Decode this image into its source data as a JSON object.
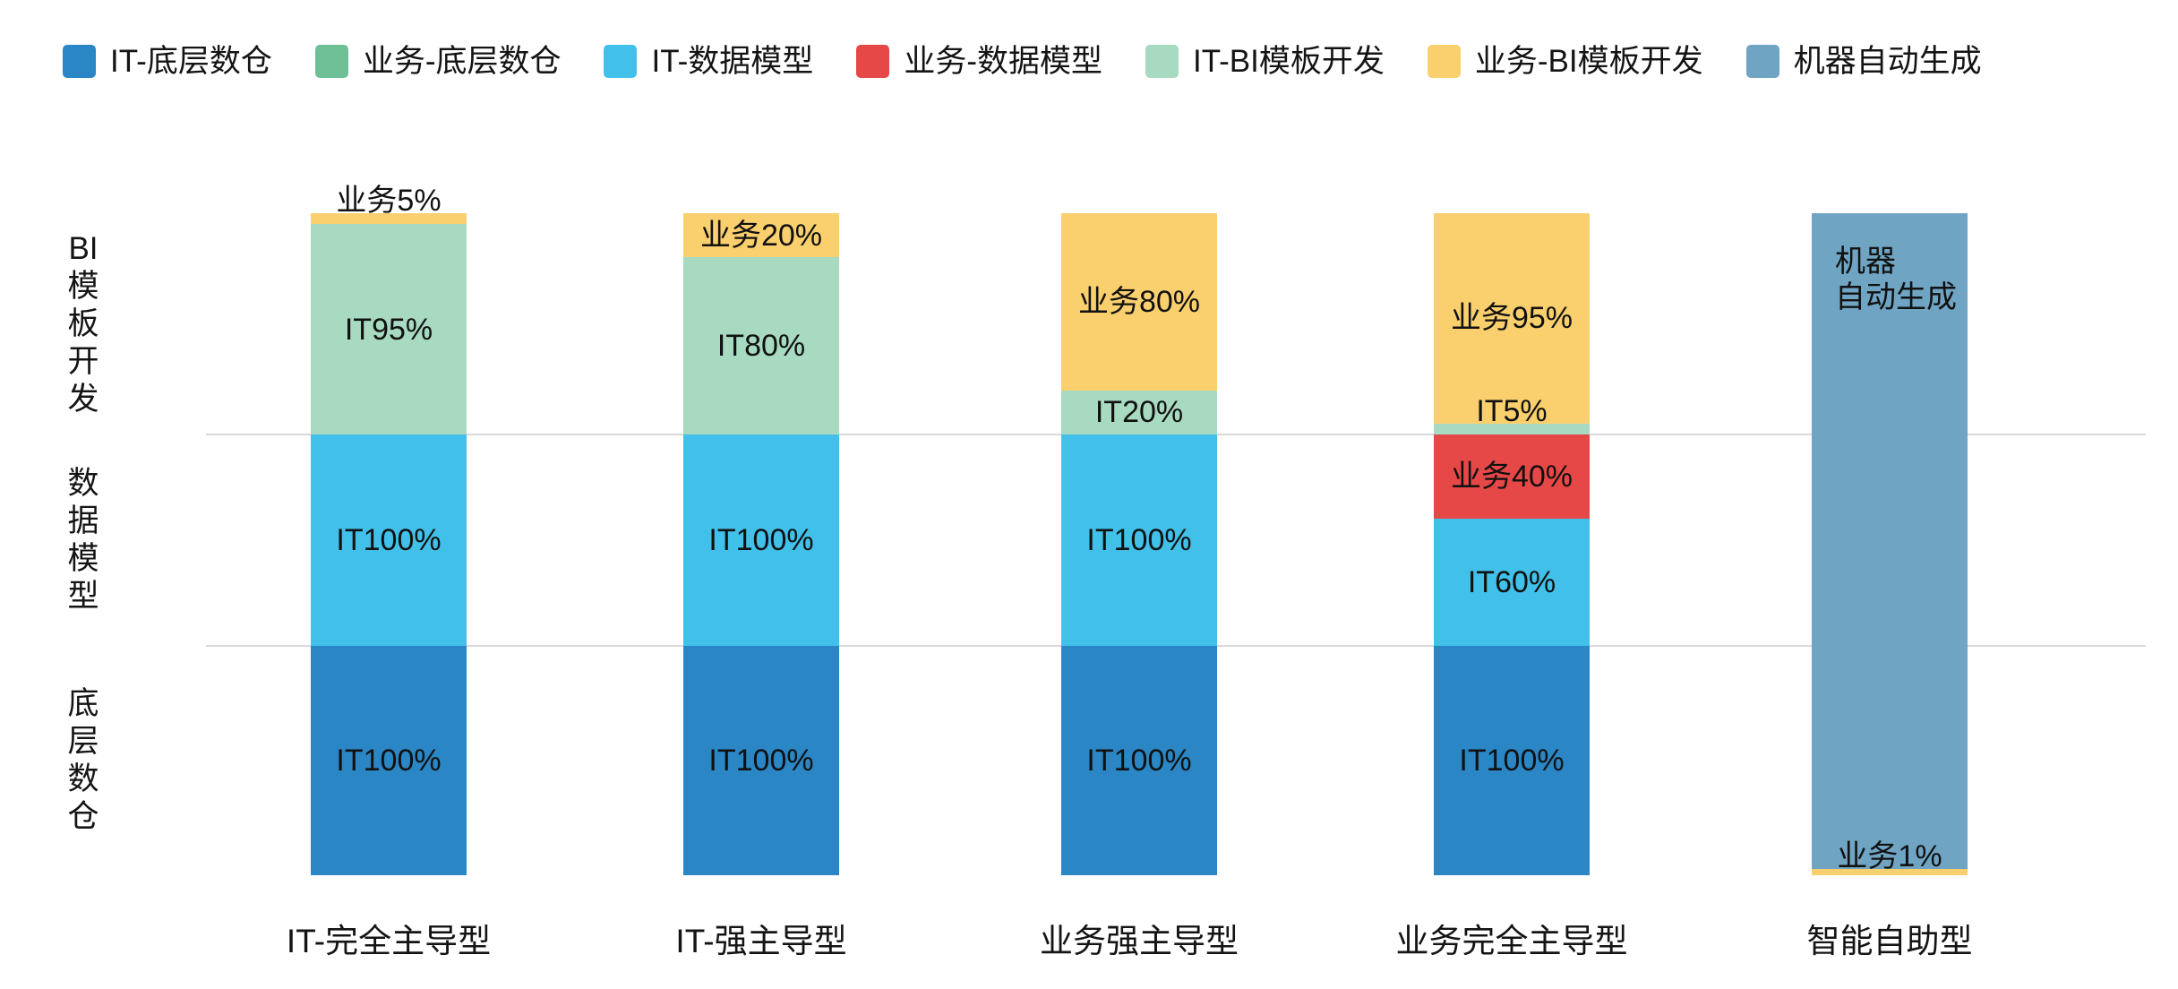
{
  "legend": {
    "items": [
      {
        "label": "IT-底层数仓",
        "color": "#2a86c5"
      },
      {
        "label": "业务-底层数仓",
        "color": "#6fc096"
      },
      {
        "label": "IT-数据模型",
        "color": "#41c0e9"
      },
      {
        "label": "业务-数据模型",
        "color": "#e64747"
      },
      {
        "label": "IT-BI模板开发",
        "color": "#a7dac1"
      },
      {
        "label": "业务-BI模板开发",
        "color": "#fad06e"
      },
      {
        "label": "机器自动生成",
        "color": "#6fa5c3"
      }
    ]
  },
  "axis": {
    "row_labels": [
      {
        "text": "BI模板开发",
        "display": "BI\n模\n板\n开\n发"
      },
      {
        "text": "数据模型",
        "display": "数\n据\n模\n型"
      },
      {
        "text": "底层数仓",
        "display": "底\n层\n数\n仓"
      }
    ]
  },
  "chart_data": {
    "type": "bar",
    "stacked": true,
    "orientation": "vertical",
    "unit": "%",
    "grid": "horizontal-band-dividers",
    "legend_position": "top",
    "bands": [
      "BI模板开发",
      "数据模型",
      "底层数仓"
    ],
    "categories": [
      "IT-完全主导型",
      "IT-强主导型",
      "业务强主导型",
      "业务完全主导型",
      "智能自助型"
    ],
    "columns": [
      {
        "category": "IT-完全主导型",
        "segments": [
          {
            "series": "业务-BI模板开发",
            "band_index": 0,
            "value_pct": 5,
            "label": "业务5%",
            "color": "#fad06e",
            "label_pos": "above"
          },
          {
            "series": "IT-BI模板开发",
            "band_index": 0,
            "value_pct": 95,
            "label": "IT95%",
            "color": "#a7dac1",
            "label_pos": "center"
          },
          {
            "series": "IT-数据模型",
            "band_index": 1,
            "value_pct": 100,
            "label": "IT100%",
            "color": "#41c0e9",
            "label_pos": "center"
          },
          {
            "series": "IT-底层数仓",
            "band_index": 2,
            "value_pct": 100,
            "label": "IT100%",
            "color": "#2a86c5",
            "label_pos": "center"
          }
        ]
      },
      {
        "category": "IT-强主导型",
        "segments": [
          {
            "series": "业务-BI模板开发",
            "band_index": 0,
            "value_pct": 20,
            "label": "业务20%",
            "color": "#fad06e",
            "label_pos": "center"
          },
          {
            "series": "IT-BI模板开发",
            "band_index": 0,
            "value_pct": 80,
            "label": "IT80%",
            "color": "#a7dac1",
            "label_pos": "center"
          },
          {
            "series": "IT-数据模型",
            "band_index": 1,
            "value_pct": 100,
            "label": "IT100%",
            "color": "#41c0e9",
            "label_pos": "center"
          },
          {
            "series": "IT-底层数仓",
            "band_index": 2,
            "value_pct": 100,
            "label": "IT100%",
            "color": "#2a86c5",
            "label_pos": "center"
          }
        ]
      },
      {
        "category": "业务强主导型",
        "segments": [
          {
            "series": "业务-BI模板开发",
            "band_index": 0,
            "value_pct": 80,
            "label": "业务80%",
            "color": "#fad06e",
            "label_pos": "center"
          },
          {
            "series": "IT-BI模板开发",
            "band_index": 0,
            "value_pct": 20,
            "label": "IT20%",
            "color": "#a7dac1",
            "label_pos": "center"
          },
          {
            "series": "IT-数据模型",
            "band_index": 1,
            "value_pct": 100,
            "label": "IT100%",
            "color": "#41c0e9",
            "label_pos": "center"
          },
          {
            "series": "IT-底层数仓",
            "band_index": 2,
            "value_pct": 100,
            "label": "IT100%",
            "color": "#2a86c5",
            "label_pos": "center"
          }
        ]
      },
      {
        "category": "业务完全主导型",
        "segments": [
          {
            "series": "业务-BI模板开发",
            "band_index": 0,
            "value_pct": 95,
            "label": "业务95%",
            "color": "#fad06e",
            "label_pos": "center"
          },
          {
            "series": "IT-BI模板开发",
            "band_index": 0,
            "value_pct": 5,
            "label": "IT5%",
            "color": "#a7dac1",
            "label_pos": "above"
          },
          {
            "series": "业务-数据模型",
            "band_index": 1,
            "value_pct": 40,
            "label": "业务40%",
            "color": "#e64747",
            "label_pos": "center"
          },
          {
            "series": "IT-数据模型",
            "band_index": 1,
            "value_pct": 60,
            "label": "IT60%",
            "color": "#41c0e9",
            "label_pos": "center"
          },
          {
            "series": "IT-底层数仓",
            "band_index": 2,
            "value_pct": 100,
            "label": "IT100%",
            "color": "#2a86c5",
            "label_pos": "center"
          }
        ]
      },
      {
        "category": "智能自助型",
        "segments": [
          {
            "series": "机器自动生成",
            "span": "total",
            "value_pct": 99,
            "label": "机器\n自动生成",
            "color": "#6fa5c3",
            "label_pos": "top-left"
          },
          {
            "series": "业务-BI模板开发",
            "span": "total",
            "value_pct": 1,
            "label": "业务1%",
            "color": "#fad06e",
            "label_pos": "above"
          }
        ]
      }
    ]
  }
}
